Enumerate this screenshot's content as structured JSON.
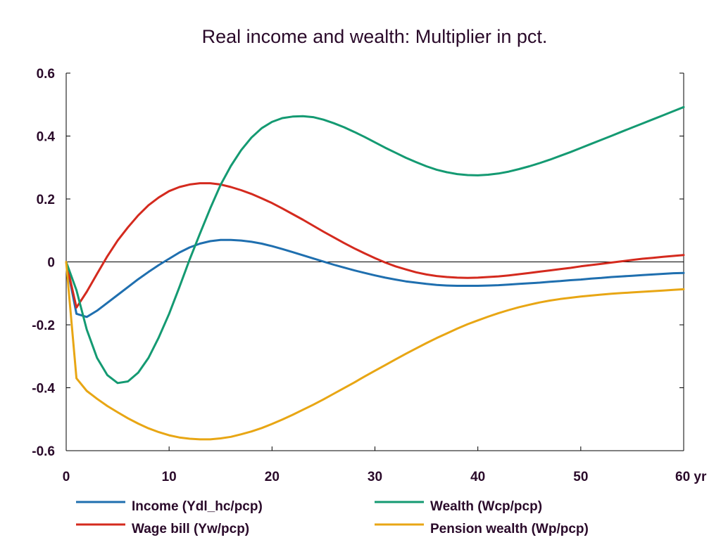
{
  "chart_data": {
    "type": "line",
    "title": "Real income and wealth: Multiplier in pct.",
    "xlabel": "",
    "ylabel": "",
    "xlim": [
      0,
      60
    ],
    "ylim": [
      -0.6,
      0.6
    ],
    "x_ticks": [
      0,
      10,
      20,
      30,
      40,
      50,
      60
    ],
    "x_tick_labels": [
      "0",
      "10",
      "20",
      "30",
      "40",
      "50",
      "60 yr"
    ],
    "y_ticks": [
      0.6,
      0.4,
      0.2,
      0,
      -0.2,
      -0.4,
      -0.6
    ],
    "y_tick_labels": [
      "0.6",
      "0.4",
      "0.2",
      "0",
      "-0.2",
      "-0.4",
      "-0.6"
    ],
    "grid": false,
    "zero_line": true,
    "legend_position": "bottom",
    "x": [
      0,
      1,
      2,
      3,
      4,
      5,
      6,
      7,
      8,
      9,
      10,
      11,
      12,
      13,
      14,
      15,
      16,
      17,
      18,
      19,
      20,
      21,
      22,
      23,
      24,
      25,
      26,
      27,
      28,
      29,
      30,
      31,
      32,
      33,
      34,
      35,
      36,
      37,
      38,
      39,
      40,
      41,
      42,
      43,
      44,
      45,
      46,
      47,
      48,
      49,
      50,
      51,
      52,
      53,
      54,
      55,
      56,
      57,
      58,
      59,
      60
    ],
    "series": [
      {
        "name": "Income (Ydl_hc/pcp)",
        "color": "#1f6faf",
        "values": [
          0,
          -0.165,
          -0.175,
          -0.155,
          -0.13,
          -0.105,
          -0.08,
          -0.055,
          -0.032,
          -0.01,
          0.01,
          0.03,
          0.046,
          0.058,
          0.066,
          0.07,
          0.07,
          0.068,
          0.064,
          0.058,
          0.05,
          0.041,
          0.031,
          0.021,
          0.011,
          0.001,
          -0.009,
          -0.018,
          -0.027,
          -0.035,
          -0.043,
          -0.05,
          -0.056,
          -0.062,
          -0.066,
          -0.07,
          -0.073,
          -0.075,
          -0.076,
          -0.076,
          -0.076,
          -0.075,
          -0.074,
          -0.072,
          -0.07,
          -0.068,
          -0.066,
          -0.063,
          -0.061,
          -0.058,
          -0.056,
          -0.053,
          -0.051,
          -0.048,
          -0.046,
          -0.044,
          -0.042,
          -0.04,
          -0.038,
          -0.036,
          -0.035
        ]
      },
      {
        "name": "Wage bill (Yw/pcp)",
        "color": "#d42a1e",
        "values": [
          0,
          -0.145,
          -0.095,
          -0.038,
          0.018,
          0.068,
          0.11,
          0.148,
          0.18,
          0.205,
          0.225,
          0.238,
          0.246,
          0.25,
          0.25,
          0.246,
          0.238,
          0.228,
          0.216,
          0.202,
          0.187,
          0.17,
          0.152,
          0.134,
          0.115,
          0.096,
          0.078,
          0.06,
          0.043,
          0.027,
          0.012,
          -0.002,
          -0.014,
          -0.024,
          -0.033,
          -0.04,
          -0.045,
          -0.048,
          -0.05,
          -0.051,
          -0.05,
          -0.048,
          -0.046,
          -0.043,
          -0.039,
          -0.035,
          -0.031,
          -0.027,
          -0.023,
          -0.019,
          -0.014,
          -0.01,
          -0.006,
          -0.002,
          0.002,
          0.006,
          0.01,
          0.013,
          0.016,
          0.019,
          0.022
        ]
      },
      {
        "name": "Wealth (Wcp/pcp)",
        "color": "#149a72",
        "values": [
          0,
          -0.09,
          -0.215,
          -0.305,
          -0.36,
          -0.385,
          -0.38,
          -0.352,
          -0.305,
          -0.24,
          -0.165,
          -0.08,
          0.008,
          0.09,
          0.17,
          0.245,
          0.305,
          0.355,
          0.395,
          0.425,
          0.445,
          0.457,
          0.462,
          0.463,
          0.46,
          0.452,
          0.441,
          0.428,
          0.413,
          0.397,
          0.38,
          0.363,
          0.347,
          0.331,
          0.317,
          0.304,
          0.293,
          0.285,
          0.279,
          0.276,
          0.275,
          0.277,
          0.281,
          0.287,
          0.295,
          0.304,
          0.314,
          0.325,
          0.337,
          0.349,
          0.362,
          0.375,
          0.388,
          0.401,
          0.414,
          0.427,
          0.44,
          0.453,
          0.466,
          0.479,
          0.492
        ]
      },
      {
        "name": "Pension wealth (Wp/pcp)",
        "color": "#e8a614",
        "values": [
          0,
          -0.37,
          -0.41,
          -0.435,
          -0.458,
          -0.478,
          -0.497,
          -0.514,
          -0.529,
          -0.541,
          -0.551,
          -0.558,
          -0.562,
          -0.564,
          -0.564,
          -0.561,
          -0.556,
          -0.548,
          -0.539,
          -0.528,
          -0.515,
          -0.501,
          -0.486,
          -0.47,
          -0.454,
          -0.437,
          -0.419,
          -0.401,
          -0.383,
          -0.364,
          -0.346,
          -0.328,
          -0.31,
          -0.292,
          -0.275,
          -0.258,
          -0.242,
          -0.227,
          -0.212,
          -0.198,
          -0.186,
          -0.174,
          -0.163,
          -0.153,
          -0.144,
          -0.136,
          -0.129,
          -0.123,
          -0.118,
          -0.114,
          -0.11,
          -0.107,
          -0.104,
          -0.101,
          -0.099,
          -0.097,
          -0.095,
          -0.093,
          -0.091,
          -0.089,
          -0.087
        ]
      }
    ],
    "legend": [
      {
        "label": "Income (Ydl_hc/pcp)",
        "color": "#1f6faf"
      },
      {
        "label": "Wealth (Wcp/pcp)",
        "color": "#149a72"
      },
      {
        "label": "Wage bill (Yw/pcp)",
        "color": "#d42a1e"
      },
      {
        "label": "Pension wealth (Wp/pcp)",
        "color": "#e8a614"
      }
    ]
  }
}
